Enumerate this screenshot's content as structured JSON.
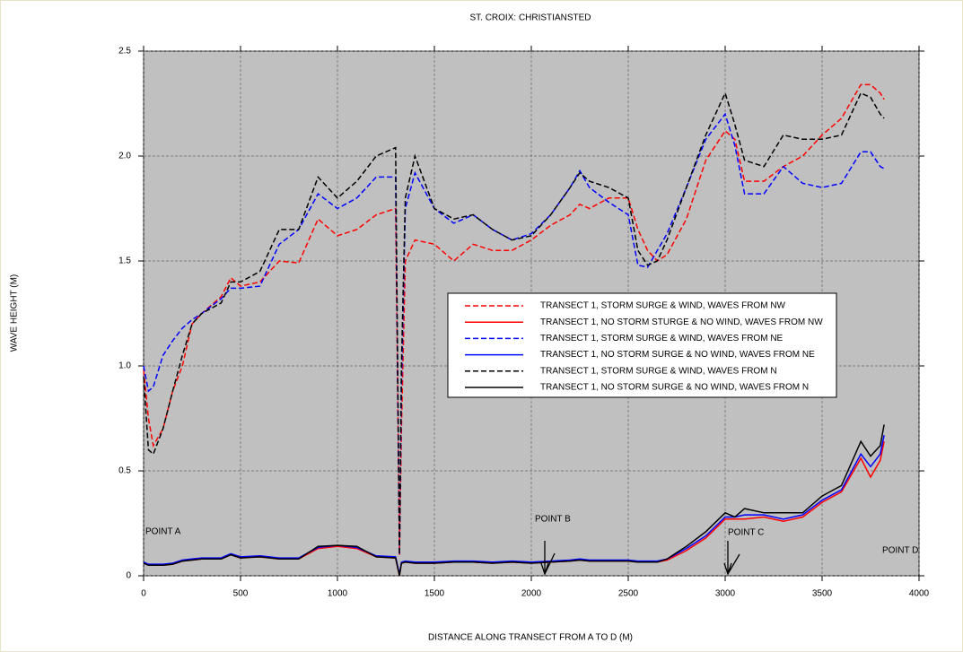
{
  "chart_data": {
    "type": "line",
    "title": "ST. CROIX: CHRISTIANSTED",
    "xlabel": "DISTANCE ALONG TRANSECT FROM A TO D (M)",
    "ylabel": "WAVE HEIGHT (M)",
    "xlim": [
      0,
      4000
    ],
    "ylim": [
      0,
      2.5
    ],
    "xticks": [
      0,
      500,
      1000,
      1500,
      2000,
      2500,
      3000,
      3500,
      4000
    ],
    "yticks": [
      0,
      0.5,
      {
        "value": 1,
        "label": "1.0"
      },
      1.5,
      {
        "value": 2,
        "label": "2.0"
      },
      2.5
    ],
    "grid": true,
    "background": "#c0c0c0",
    "annotations": [
      "POINT A",
      "POINT B",
      "POINT C",
      "POINT D"
    ],
    "x": [
      0,
      25,
      50,
      100,
      150,
      200,
      250,
      300,
      400,
      450,
      500,
      600,
      700,
      800,
      900,
      1000,
      1100,
      1200,
      1300,
      1320,
      1330,
      1350,
      1400,
      1500,
      1600,
      1700,
      1800,
      1900,
      2000,
      2100,
      2200,
      2250,
      2300,
      2400,
      2500,
      2550,
      2600,
      2650,
      2700,
      2800,
      2900,
      3000,
      3050,
      3100,
      3200,
      3300,
      3400,
      3500,
      3600,
      3700,
      3750,
      3800,
      3820
    ],
    "series": [
      {
        "name": "TRANSECT 1, STORM SURGE & WIND, WAVES FROM NW",
        "color": "#ff0000",
        "style": "dashed",
        "values": [
          0.98,
          0.75,
          0.62,
          0.7,
          0.88,
          1.0,
          1.2,
          1.25,
          1.33,
          1.42,
          1.38,
          1.4,
          1.5,
          1.49,
          1.7,
          1.62,
          1.65,
          1.72,
          1.75,
          0.1,
          0.7,
          1.5,
          1.6,
          1.58,
          1.5,
          1.58,
          1.55,
          1.55,
          1.6,
          1.67,
          1.72,
          1.77,
          1.75,
          1.8,
          1.8,
          1.65,
          1.55,
          1.5,
          1.53,
          1.7,
          1.98,
          2.12,
          2.08,
          1.88,
          1.88,
          1.95,
          2.0,
          2.1,
          2.18,
          2.34,
          2.34,
          2.3,
          2.27
        ]
      },
      {
        "name": "TRANSECT 1, NO STORM STURGE & NO WIND, WAVES FROM NW",
        "color": "#ff0000",
        "style": "solid",
        "values": [
          0.06,
          0.05,
          0.05,
          0.05,
          0.055,
          0.07,
          0.075,
          0.08,
          0.08,
          0.1,
          0.085,
          0.09,
          0.08,
          0.08,
          0.13,
          0.14,
          0.13,
          0.09,
          0.085,
          0.0,
          0.06,
          0.065,
          0.06,
          0.06,
          0.065,
          0.065,
          0.06,
          0.065,
          0.06,
          0.065,
          0.07,
          0.075,
          0.07,
          0.07,
          0.07,
          0.065,
          0.065,
          0.065,
          0.075,
          0.12,
          0.18,
          0.27,
          0.27,
          0.27,
          0.28,
          0.26,
          0.28,
          0.35,
          0.4,
          0.56,
          0.47,
          0.55,
          0.64
        ]
      },
      {
        "name": "TRANSECT 1, STORM SURGE & WIND, WAVES FROM NE",
        "color": "#0000ff",
        "style": "dashed",
        "values": [
          1.0,
          0.88,
          0.9,
          1.05,
          1.12,
          1.18,
          1.22,
          1.25,
          1.32,
          1.37,
          1.37,
          1.38,
          1.58,
          1.65,
          1.82,
          1.75,
          1.8,
          1.9,
          1.9,
          0.1,
          0.9,
          1.75,
          1.92,
          1.75,
          1.68,
          1.72,
          1.65,
          1.6,
          1.63,
          1.72,
          1.85,
          1.93,
          1.85,
          1.78,
          1.72,
          1.48,
          1.47,
          1.55,
          1.63,
          1.85,
          2.08,
          2.2,
          2.05,
          1.82,
          1.82,
          1.95,
          1.87,
          1.85,
          1.87,
          2.02,
          2.02,
          1.95,
          1.94
        ]
      },
      {
        "name": "TRANSECT 1, NO STORM SURGE & NO WIND, WAVES FROM NE",
        "color": "#0000ff",
        "style": "solid",
        "values": [
          0.065,
          0.055,
          0.055,
          0.055,
          0.06,
          0.075,
          0.08,
          0.085,
          0.085,
          0.105,
          0.09,
          0.095,
          0.085,
          0.085,
          0.135,
          0.145,
          0.135,
          0.095,
          0.09,
          0.005,
          0.065,
          0.07,
          0.065,
          0.065,
          0.07,
          0.07,
          0.065,
          0.07,
          0.065,
          0.07,
          0.075,
          0.08,
          0.075,
          0.075,
          0.075,
          0.07,
          0.07,
          0.07,
          0.08,
          0.13,
          0.19,
          0.28,
          0.28,
          0.29,
          0.29,
          0.27,
          0.29,
          0.36,
          0.41,
          0.58,
          0.52,
          0.58,
          0.67
        ]
      },
      {
        "name": "TRANSECT 1, STORM SURGE & WIND, WAVES FROM N",
        "color": "#000000",
        "style": "dashed",
        "values": [
          0.95,
          0.6,
          0.58,
          0.7,
          0.88,
          1.05,
          1.2,
          1.25,
          1.3,
          1.4,
          1.4,
          1.45,
          1.65,
          1.65,
          1.9,
          1.8,
          1.88,
          2.0,
          2.04,
          0.1,
          1.0,
          1.8,
          2.0,
          1.75,
          1.7,
          1.72,
          1.65,
          1.6,
          1.62,
          1.72,
          1.85,
          1.92,
          1.88,
          1.85,
          1.8,
          1.55,
          1.48,
          1.5,
          1.6,
          1.85,
          2.1,
          2.3,
          2.15,
          1.98,
          1.95,
          2.1,
          2.08,
          2.08,
          2.1,
          2.3,
          2.28,
          2.2,
          2.18
        ]
      },
      {
        "name": "TRANSECT 1, NO STORM SURGE & NO WIND, WAVES FROM N",
        "color": "#000000",
        "style": "solid",
        "values": [
          0.06,
          0.05,
          0.05,
          0.05,
          0.055,
          0.07,
          0.075,
          0.08,
          0.08,
          0.1,
          0.085,
          0.09,
          0.08,
          0.08,
          0.14,
          0.145,
          0.14,
          0.09,
          0.085,
          0.0,
          0.06,
          0.065,
          0.06,
          0.06,
          0.065,
          0.065,
          0.06,
          0.065,
          0.06,
          0.065,
          0.07,
          0.075,
          0.07,
          0.07,
          0.07,
          0.065,
          0.065,
          0.065,
          0.08,
          0.14,
          0.21,
          0.3,
          0.28,
          0.32,
          0.3,
          0.3,
          0.3,
          0.38,
          0.43,
          0.64,
          0.57,
          0.62,
          0.72
        ]
      }
    ]
  }
}
